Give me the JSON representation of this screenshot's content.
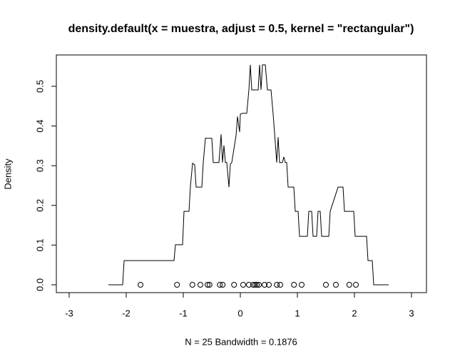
{
  "chart_data": {
    "type": "line",
    "title": "density.default(x = muestra, adjust = 0.5, kernel = \"rectangular\")",
    "xlabel": "N = 25   Bandwidth = 0.1876",
    "ylabel": "Density",
    "color": "#000000",
    "xlim": [
      -3.225,
      3.2625
    ],
    "ylim": [
      -0.0198,
      0.579
    ],
    "xticks": [
      -3,
      -2,
      -1,
      0,
      1,
      2,
      3
    ],
    "yticks": [
      {
        "value": 0,
        "label": "0.0"
      },
      0.1,
      0.2,
      0.3,
      0.4,
      0.5
    ],
    "x": [
      -2.3125,
      -2.0625,
      -2.0375,
      -1.1625,
      -1.1375,
      -1.0125,
      -0.9875,
      -0.9,
      -0.875,
      -0.8375,
      -0.8,
      -0.775,
      -0.675,
      -0.65,
      -0.6125,
      -0.5,
      -0.475,
      -0.375,
      -0.3375,
      -0.3125,
      -0.2875,
      -0.2625,
      -0.2375,
      -0.2,
      -0.175,
      -0.15,
      -0.075,
      -0.05,
      -0.0125,
      0,
      0.0375,
      0.1125,
      0.15,
      0.175,
      0.2,
      0.3125,
      0.3375,
      0.3625,
      0.3875,
      0.4375,
      0.475,
      0.5375,
      0.575,
      0.6125,
      0.6375,
      0.6625,
      0.6875,
      0.7375,
      0.7625,
      0.7875,
      0.8125,
      0.8375,
      0.9375,
      0.9625,
      1.0125,
      1.0375,
      1.175,
      1.2,
      1.25,
      1.275,
      1.3375,
      1.3625,
      1.4,
      1.425,
      1.55,
      1.575,
      1.7125,
      1.8,
      1.825,
      1.9875,
      2.0125,
      2.2125,
      2.2375,
      2.3125,
      2.3375,
      2.6
    ],
    "values": [
      0,
      0,
      0.061,
      0.061,
      0.101,
      0.101,
      0.185,
      0.185,
      0.248,
      0.306,
      0.302,
      0.246,
      0.246,
      0.308,
      0.369,
      0.369,
      0.308,
      0.308,
      0.379,
      0.308,
      0.351,
      0.308,
      0.308,
      0.246,
      0.304,
      0.308,
      0.376,
      0.424,
      0.385,
      0.43,
      0.432,
      0.432,
      0.491,
      0.554,
      0.491,
      0.491,
      0.554,
      0.491,
      0.554,
      0.554,
      0.491,
      0.491,
      0.43,
      0.358,
      0.308,
      0.372,
      0.308,
      0.308,
      0.322,
      0.308,
      0.308,
      0.246,
      0.246,
      0.185,
      0.185,
      0.122,
      0.122,
      0.185,
      0.185,
      0.122,
      0.122,
      0.185,
      0.185,
      0.122,
      0.122,
      0.185,
      0.246,
      0.246,
      0.185,
      0.185,
      0.122,
      0.122,
      0.061,
      0.061,
      0,
      0
    ],
    "rug": [
      -1.75,
      -1.11,
      -0.84,
      -0.7,
      -0.575,
      -0.54,
      -0.36,
      -0.31,
      -0.11,
      0.05,
      0.15,
      0.225,
      0.26,
      0.29,
      0.325,
      0.425,
      0.5,
      0.64,
      0.7,
      0.94,
      1.075,
      1.5,
      1.675,
      1.91,
      2.025
    ]
  }
}
